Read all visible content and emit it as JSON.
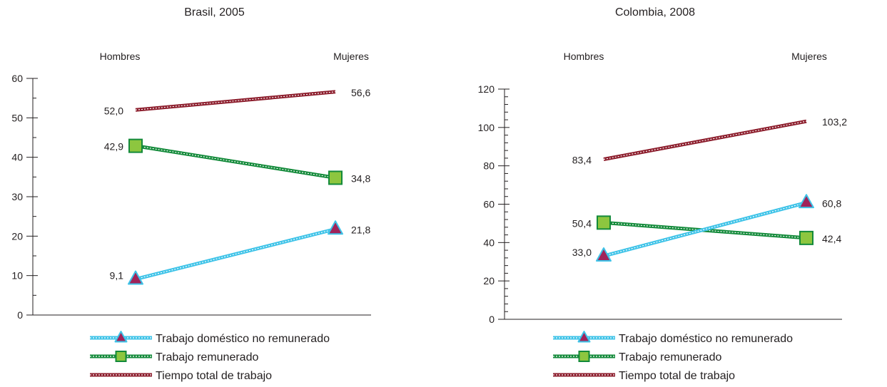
{
  "colors": {
    "domestic": "#3ec3e8",
    "paid": "#138a3a",
    "total": "#8c1d2c",
    "triangle_fill": "#a0235a",
    "square_fill": "#8dc63f",
    "axis": "#231f20"
  },
  "legend_items": [
    {
      "label": "Trabajo doméstico no remunerado",
      "marker": "triangle-icon",
      "series": "domestic"
    },
    {
      "label": "Trabajo remunerado",
      "marker": "square-icon",
      "series": "paid"
    },
    {
      "label": "Tiempo total de trabajo",
      "marker": "none",
      "series": "total"
    }
  ],
  "chart_data": [
    {
      "type": "line",
      "title": "Brasil, 2005",
      "categories": [
        "Hombres",
        "Mujeres"
      ],
      "ylim": [
        0,
        60
      ],
      "yticks": [
        "0",
        "10",
        "20",
        "30",
        "40",
        "50",
        "60"
      ],
      "ytick_values": [
        0,
        10,
        20,
        30,
        40,
        50,
        60
      ],
      "legend_position": "bottom",
      "series": [
        {
          "key": "total",
          "name": "Tiempo total de trabajo",
          "values": [
            52.0,
            56.6
          ],
          "labels": [
            "52,0",
            "56,6"
          ]
        },
        {
          "key": "paid",
          "name": "Trabajo remunerado",
          "values": [
            42.9,
            34.8
          ],
          "labels": [
            "42,9",
            "34,8"
          ]
        },
        {
          "key": "domestic",
          "name": "Trabajo doméstico no remunerado",
          "values": [
            9.1,
            21.8
          ],
          "labels": [
            "9,1",
            "21,8"
          ]
        }
      ]
    },
    {
      "type": "line",
      "title": "Colombia, 2008",
      "categories": [
        "Hombres",
        "Mujeres"
      ],
      "ylim": [
        0,
        120
      ],
      "yticks": [
        "0",
        "20",
        "40",
        "60",
        "80",
        "100",
        "120"
      ],
      "ytick_values": [
        0,
        20,
        40,
        60,
        80,
        100,
        120
      ],
      "legend_position": "bottom",
      "series": [
        {
          "key": "total",
          "name": "Tiempo total de trabajo",
          "values": [
            83.4,
            103.2
          ],
          "labels": [
            "83,4",
            "103,2"
          ]
        },
        {
          "key": "paid",
          "name": "Trabajo remunerado",
          "values": [
            50.4,
            42.4
          ],
          "labels": [
            "50,4",
            "42,4"
          ]
        },
        {
          "key": "domestic",
          "name": "Trabajo doméstico no remunerado",
          "values": [
            33.0,
            60.8
          ],
          "labels": [
            "33,0",
            "60,8"
          ]
        }
      ]
    }
  ]
}
